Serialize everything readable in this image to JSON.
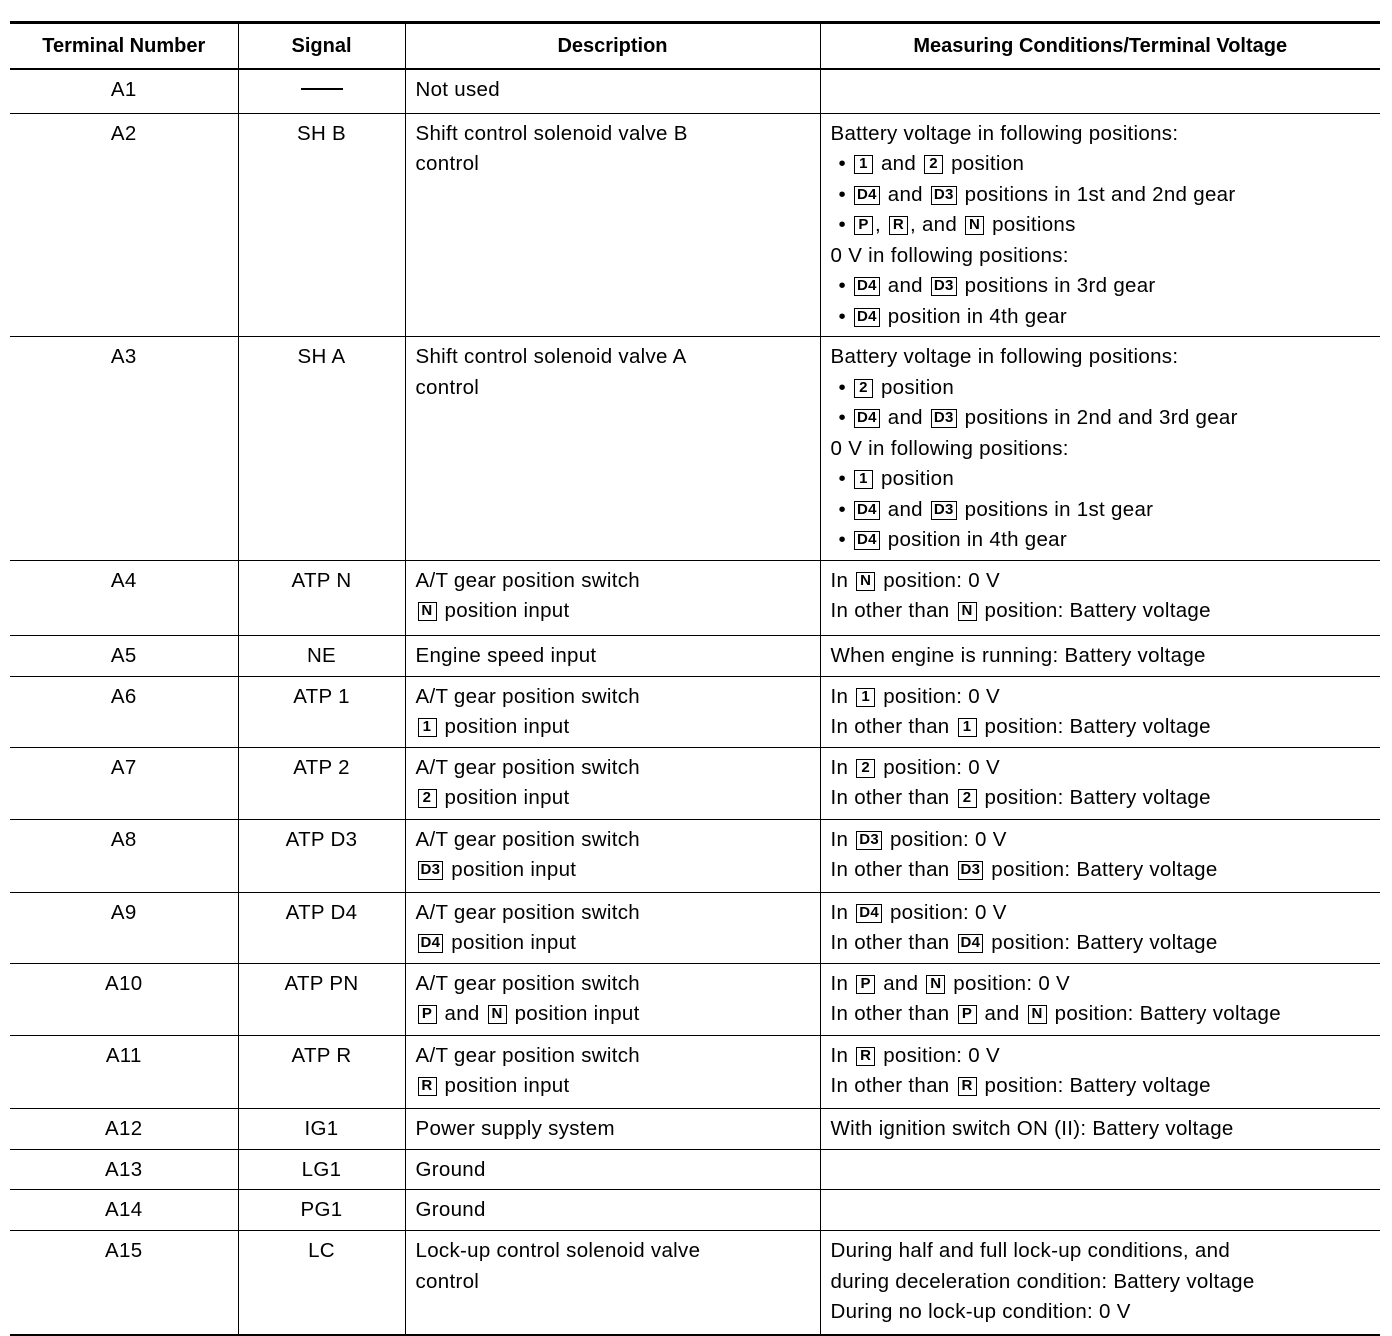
{
  "headers": [
    "Terminal Number",
    "Signal",
    "Description",
    "Measuring Conditions/Terminal Voltage"
  ],
  "rows": [
    {
      "terminal": "A1",
      "signal": "—",
      "description": [
        "Not used"
      ],
      "conditions": []
    },
    {
      "terminal": "A2",
      "signal": "SH B",
      "description": [
        "Shift control solenoid valve B",
        "control"
      ],
      "conditions": [
        "Battery voltage in following positions:",
        "• [1] and [2] position",
        "• [D4] and [D3] positions in 1st and 2nd gear",
        "• [P], [R], and [N] positions",
        "0 V in following positions:",
        "• [D4] and [D3] positions in 3rd gear",
        "• [D4] position in 4th gear"
      ]
    },
    {
      "terminal": "A3",
      "signal": "SH A",
      "description": [
        "Shift control solenoid valve A",
        "control"
      ],
      "conditions": [
        "Battery voltage in following positions:",
        "• [2] position",
        "• [D4] and [D3] positions in 2nd and 3rd gear",
        "0 V in following positions:",
        "• [1] position",
        "• [D4] and [D3] positions in 1st gear",
        "• [D4] position in 4th gear"
      ]
    },
    {
      "terminal": "A4",
      "signal": "ATP N",
      "description": [
        "A/T gear position switch",
        "[N] position input"
      ],
      "conditions": [
        "In [N] position: 0 V",
        "In other than [N] position: Battery voltage"
      ]
    },
    {
      "terminal": "A5",
      "signal": "NE",
      "description": [
        "Engine speed input"
      ],
      "conditions": [
        "When engine is running: Battery voltage"
      ]
    },
    {
      "terminal": "A6",
      "signal": "ATP 1",
      "description": [
        "A/T gear position switch",
        "[1] position input"
      ],
      "conditions": [
        "In [1] position: 0 V",
        "In other than [1] position: Battery voltage"
      ]
    },
    {
      "terminal": "A7",
      "signal": "ATP 2",
      "description": [
        "A/T gear position switch",
        "[2] position input"
      ],
      "conditions": [
        "In [2] position: 0 V",
        "In other than [2] position: Battery voltage"
      ]
    },
    {
      "terminal": "A8",
      "signal": "ATP D3",
      "description": [
        "A/T gear position switch",
        "[D3] position input"
      ],
      "conditions": [
        "In [D3] position: 0 V",
        "In other than [D3] position: Battery voltage"
      ]
    },
    {
      "terminal": "A9",
      "signal": "ATP D4",
      "description": [
        "A/T gear position switch",
        "[D4] position input"
      ],
      "conditions": [
        "In [D4] position: 0 V",
        "In other than [D4] position: Battery voltage"
      ]
    },
    {
      "terminal": "A10",
      "signal": "ATP PN",
      "description": [
        "A/T gear position switch",
        "[P] and [N] position input"
      ],
      "conditions": [
        "In [P] and [N] position: 0 V",
        "In other than [P] and [N] position: Battery voltage"
      ]
    },
    {
      "terminal": "A11",
      "signal": "ATP R",
      "description": [
        "A/T gear position switch",
        "[R] position input"
      ],
      "conditions": [
        "In [R] position: 0 V",
        "In other than [R] position: Battery voltage"
      ]
    },
    {
      "terminal": "A12",
      "signal": "IG1",
      "description": [
        "Power supply system"
      ],
      "conditions": [
        "With ignition switch ON (II): Battery voltage"
      ]
    },
    {
      "terminal": "A13",
      "signal": "LG1",
      "description": [
        "Ground"
      ],
      "conditions": []
    },
    {
      "terminal": "A14",
      "signal": "PG1",
      "description": [
        "Ground"
      ],
      "conditions": []
    },
    {
      "terminal": "A15",
      "signal": "LC",
      "description": [
        "Lock-up control solenoid valve",
        "control"
      ],
      "conditions": [
        "During half and full lock-up conditions, and",
        "during deceleration condition: Battery voltage",
        "During no lock-up condition: 0 V"
      ]
    }
  ]
}
